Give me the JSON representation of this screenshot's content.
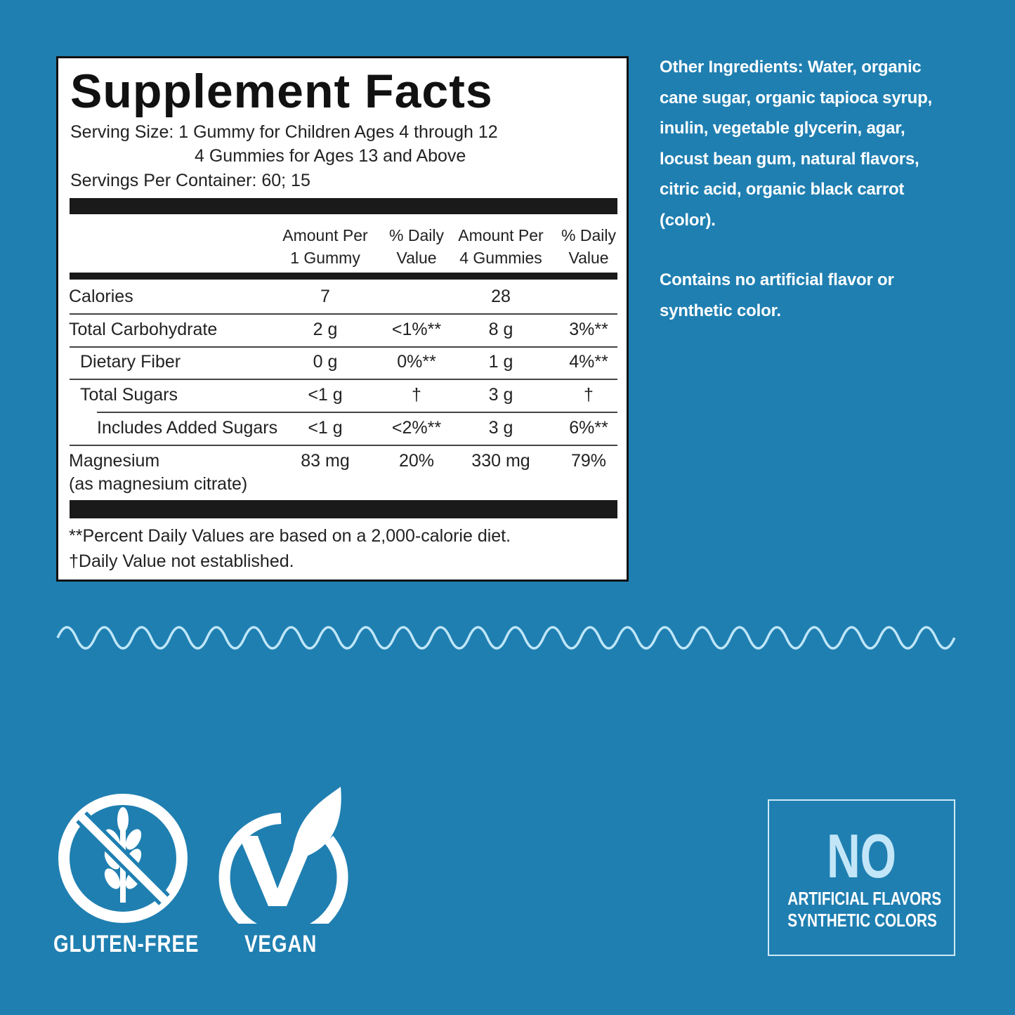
{
  "supplement_facts": {
    "title": "Supplement Facts",
    "serving_size": [
      "Serving Size: 1 Gummy for Children Ages 4 through 12",
      "4 Gummies for Ages 13 and Above"
    ],
    "servings_per_container": "Servings Per Container: 60; 15",
    "columns": [
      [
        "Amount Per",
        "1 Gummy"
      ],
      [
        "% Daily",
        "Value"
      ],
      [
        "Amount Per",
        "4 Gummies"
      ],
      [
        "% Daily",
        "Value"
      ]
    ],
    "rows": [
      {
        "name": "Calories",
        "cells": [
          "7",
          null,
          "28",
          null
        ]
      },
      {
        "name": "Total Carbohydrate",
        "cells": [
          "2 g",
          "<1%**",
          "8 g",
          "3%**"
        ]
      },
      {
        "name": "Dietary Fiber",
        "cells": [
          "0 g",
          "0%**",
          "1 g",
          "4%**"
        ]
      },
      {
        "name": "Total Sugars",
        "cells": [
          "<1 g",
          "†",
          "3 g",
          "†"
        ]
      },
      {
        "name": "Includes Added Sugars",
        "cells": [
          "<1 g",
          "<2%**",
          "3 g",
          "6%**"
        ]
      },
      {
        "name": "Magnesium",
        "sub": "(as magnesium citrate)",
        "cells": [
          "83 mg",
          "20%",
          "330 mg",
          "79%"
        ]
      }
    ],
    "footnotes": [
      "**Percent Daily Values are based on a 2,000-calorie diet.",
      "†Daily Value not established."
    ]
  },
  "other_ingredients": {
    "label": "Other Ingredients:",
    "text": "Water, organic cane sugar, organic tapioca syrup, inulin, vegetable glycerin, agar, locust bean gum, natural flavors, citric acid, organic black carrot (color)."
  },
  "note": "Contains no artificial flavor or synthetic color.",
  "badges": [
    "GLUTEN-FREE",
    "VEGAN"
  ],
  "no_box": {
    "headline": "NO",
    "lines": [
      "ARTIFICIAL FLAVORS",
      "SYNTHETIC COLORS"
    ]
  }
}
